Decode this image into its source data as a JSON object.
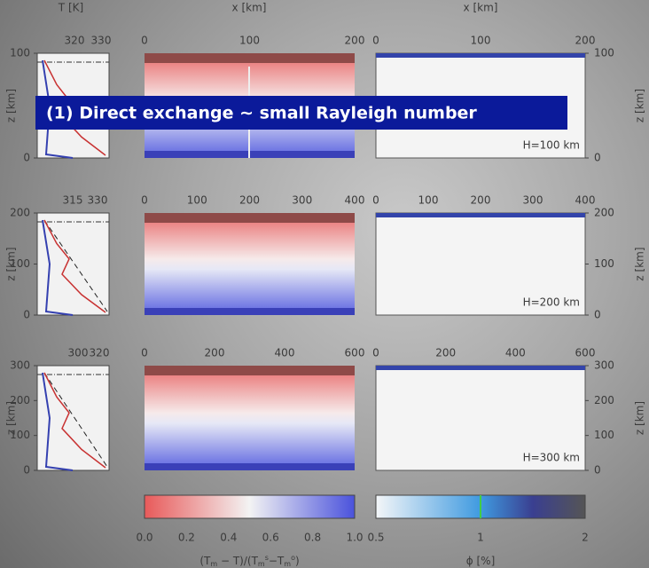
{
  "title": "(1) Direct exchange ∼ small Rayleigh number",
  "axis_labels": {
    "temperature": "T [K]",
    "x": "x [km]",
    "z": "z [km]"
  },
  "rows": [
    {
      "label": "H=100 km",
      "t_ticks": [
        "320",
        "330"
      ],
      "x_ticks": [
        "0",
        "100",
        "200"
      ],
      "z_ticks": [
        "100",
        "0"
      ]
    },
    {
      "label": "H=200 km",
      "t_ticks": [
        "315",
        "330"
      ],
      "x_ticks": [
        "0",
        "100",
        "200",
        "300",
        "400"
      ],
      "z_ticks": [
        "200",
        "100",
        "0"
      ]
    },
    {
      "label": "H=300 km",
      "t_ticks": [
        "300",
        "320"
      ],
      "x_ticks": [
        "0",
        "200",
        "400",
        "600"
      ],
      "z_ticks": [
        "300",
        "200",
        "100",
        "0"
      ]
    }
  ],
  "colorbars": [
    {
      "ticks": [
        "0.0",
        "0.2",
        "0.4",
        "0.6",
        "0.8",
        "1.0"
      ],
      "label_parts": [
        "(T",
        "m",
        " − T)/(T",
        "m",
        "s",
        "−T",
        "m",
        "o",
        ")"
      ]
    },
    {
      "ticks": [
        "0.5",
        "1",
        "2"
      ],
      "label_parts": [
        "ϕ [%]"
      ]
    }
  ]
}
